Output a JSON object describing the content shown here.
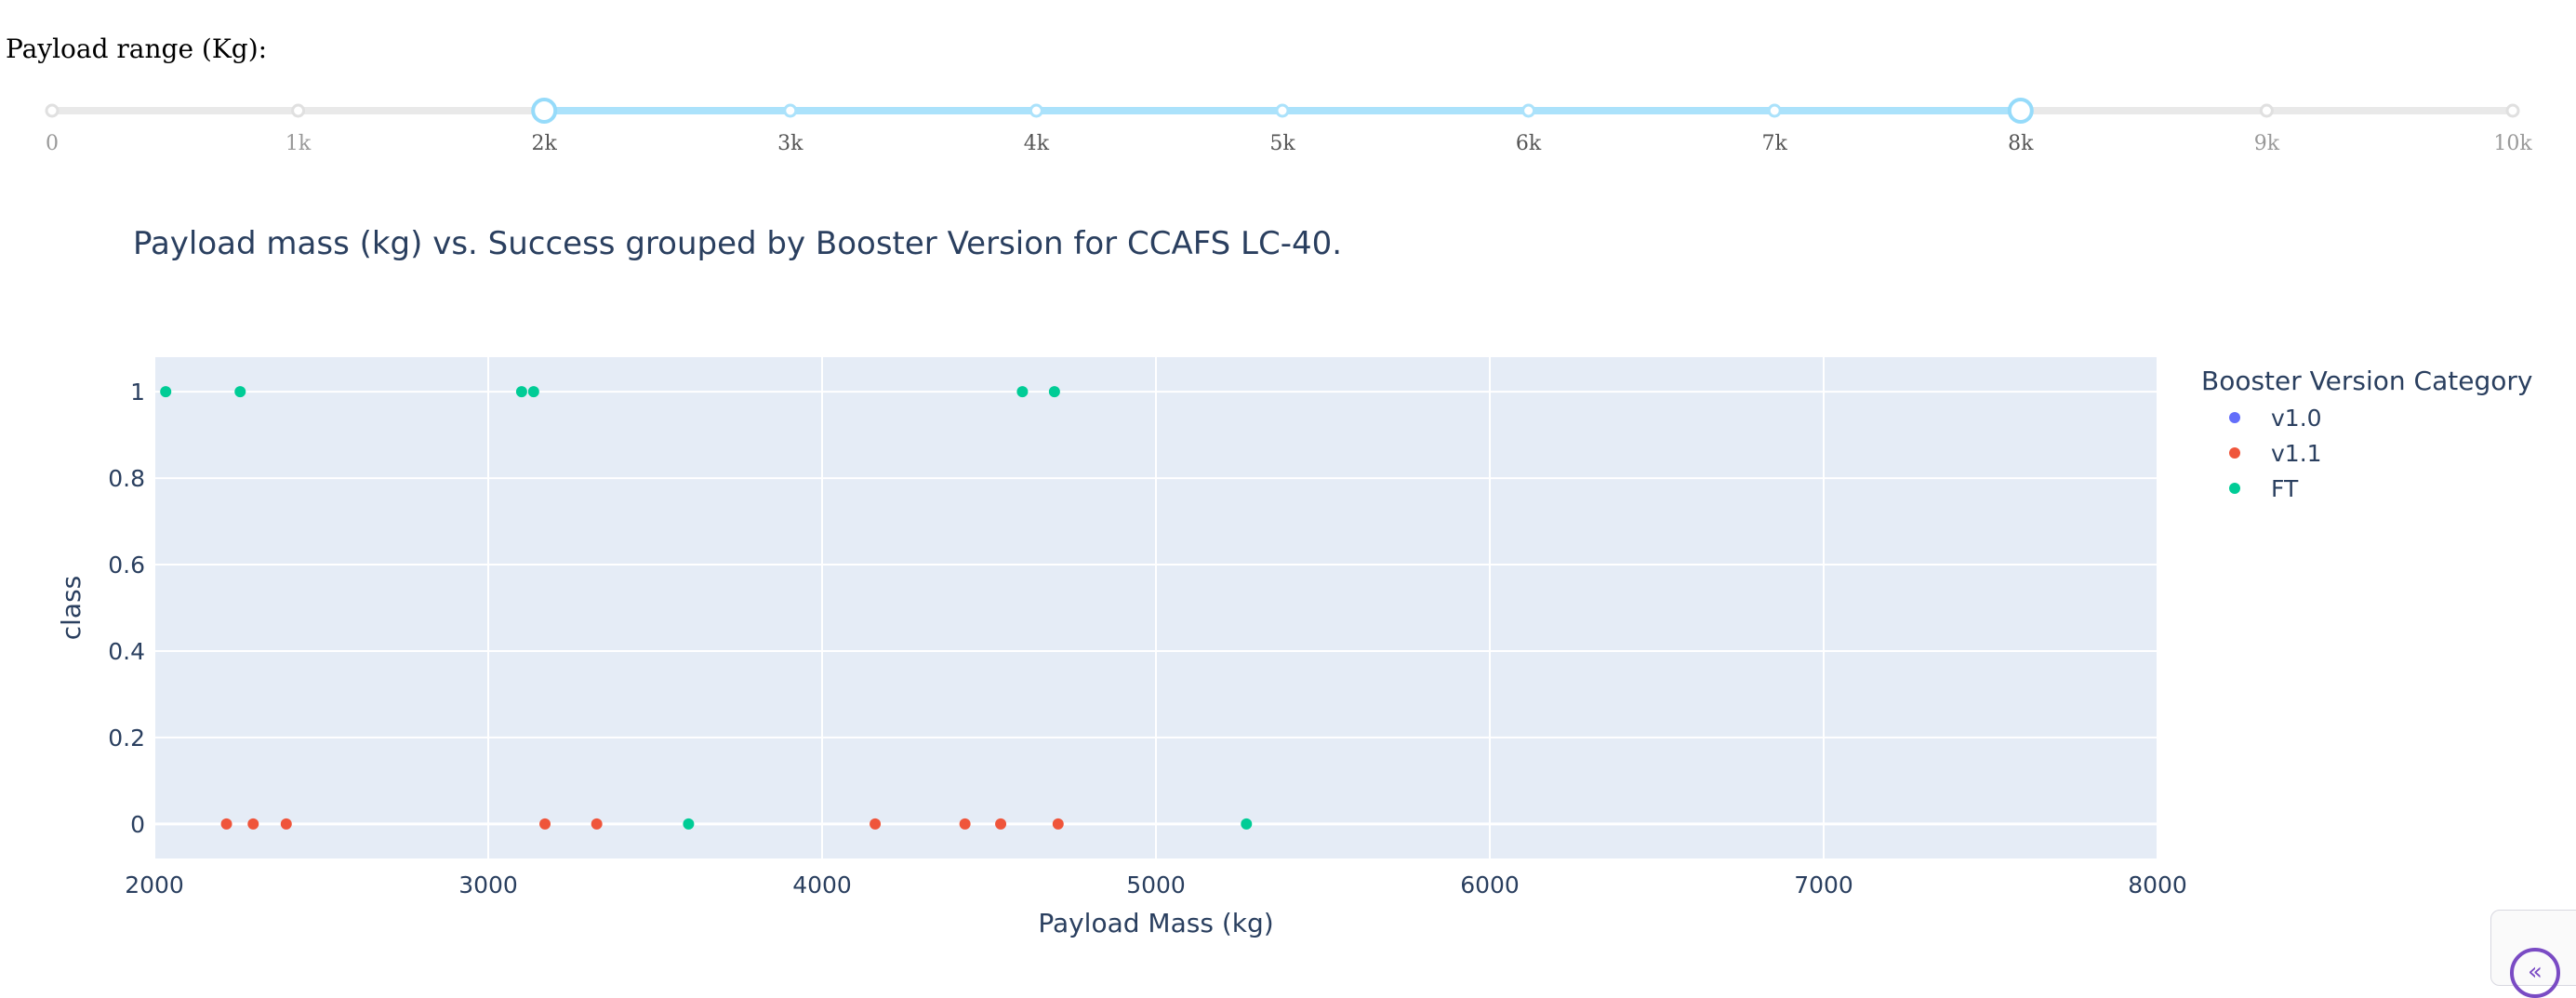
{
  "slider": {
    "label": "Payload range (Kg):",
    "min": 0,
    "max": 10000,
    "selected_min": 2000,
    "selected_max": 8000,
    "marks": [
      "0",
      "1k",
      "2k",
      "3k",
      "4k",
      "5k",
      "6k",
      "7k",
      "8k",
      "9k",
      "10k"
    ],
    "track_color": "#e9e9e9",
    "active_color": "#abe2fb",
    "handle_color": "#96dbfa"
  },
  "chart_data": {
    "type": "scatter",
    "title": "Payload mass (kg) vs. Success grouped by Booster Version for CCAFS LC-40.",
    "xlabel": "Payload Mass (kg)",
    "ylabel": "class",
    "xlim": [
      2000,
      8000
    ],
    "ylim": [
      -0.08,
      1.08
    ],
    "x_ticks": [
      2000,
      3000,
      4000,
      5000,
      6000,
      7000,
      8000
    ],
    "x_tick_labels": [
      "2000",
      "3000",
      "4000",
      "5000",
      "6000",
      "7000",
      "8000"
    ],
    "y_ticks": [
      0,
      0.2,
      0.4,
      0.6,
      0.8,
      1
    ],
    "y_tick_labels": [
      "0",
      "0.2",
      "0.4",
      "0.6",
      "0.8",
      "1"
    ],
    "grid": true,
    "legend_title": "Booster Version Category",
    "legend_position": "right",
    "plot_bg": "#e5ecf6",
    "series": [
      {
        "name": "v1.0",
        "color": "#636efa",
        "points": []
      },
      {
        "name": "v1.1",
        "color": "#ef553b",
        "points": [
          {
            "x": 2216,
            "y": 0
          },
          {
            "x": 2296,
            "y": 0
          },
          {
            "x": 2395,
            "y": 0
          },
          {
            "x": 3170,
            "y": 0
          },
          {
            "x": 3325,
            "y": 0
          },
          {
            "x": 4159,
            "y": 0
          },
          {
            "x": 4428,
            "y": 0
          },
          {
            "x": 4535,
            "y": 0
          },
          {
            "x": 4707,
            "y": 0
          }
        ]
      },
      {
        "name": "FT",
        "color": "#00cc96",
        "points": [
          {
            "x": 2034,
            "y": 1
          },
          {
            "x": 2257,
            "y": 1
          },
          {
            "x": 3100,
            "y": 1
          },
          {
            "x": 3136,
            "y": 1
          },
          {
            "x": 4600,
            "y": 1
          },
          {
            "x": 4696,
            "y": 1
          },
          {
            "x": 3600,
            "y": 0
          },
          {
            "x": 5271,
            "y": 0
          }
        ]
      }
    ]
  }
}
